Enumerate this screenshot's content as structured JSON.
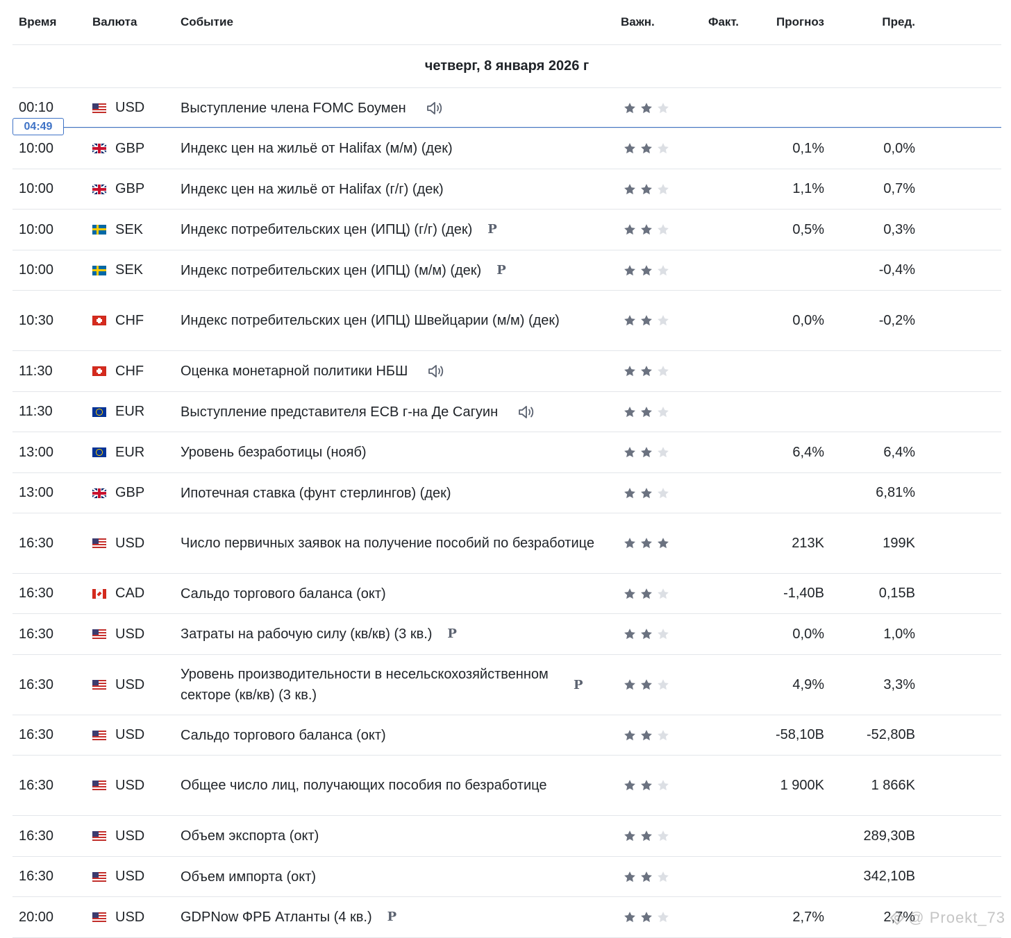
{
  "header": {
    "time": "Время",
    "currency": "Валюта",
    "event": "Событие",
    "importance": "Важн.",
    "actual": "Факт.",
    "forecast": "Прогноз",
    "previous": "Пред."
  },
  "day_label": "четверг, 8 января 2026 г",
  "current_time": "04:49",
  "colors": {
    "star_on": "#6b7280",
    "star_off": "#dcdfe4",
    "now_line": "#3f73c6"
  },
  "events": [
    {
      "time": "00:10",
      "flag": "us-flag-icon",
      "currency": "USD",
      "event": "Выступление члена FOMC Боумен",
      "marker": "speaker-icon",
      "importance": 2,
      "actual": "",
      "forecast": "",
      "previous": ""
    },
    {
      "time": "10:00",
      "flag": "gb-flag-icon",
      "currency": "GBP",
      "event": "Индекс цен на жильё от Halifax (м/м) (дек)",
      "marker": "",
      "importance": 2,
      "actual": "",
      "forecast": "0,1%",
      "previous": "0,0%"
    },
    {
      "time": "10:00",
      "flag": "gb-flag-icon",
      "currency": "GBP",
      "event": "Индекс цен на жильё от Halifax (г/г) (дек)",
      "marker": "",
      "importance": 2,
      "actual": "",
      "forecast": "1,1%",
      "previous": "0,7%"
    },
    {
      "time": "10:00",
      "flag": "se-flag-icon",
      "currency": "SEK",
      "event": "Индекс потребительских цен (ИПЦ) (г/г) (дек)",
      "marker": "P",
      "importance": 2,
      "actual": "",
      "forecast": "0,5%",
      "previous": "0,3%"
    },
    {
      "time": "10:00",
      "flag": "se-flag-icon",
      "currency": "SEK",
      "event": "Индекс потребительских цен (ИПЦ) (м/м) (дек)",
      "marker": "P",
      "importance": 2,
      "actual": "",
      "forecast": "",
      "previous": "-0,4%"
    },
    {
      "time": "10:30",
      "flag": "ch-flag-icon",
      "currency": "CHF",
      "event": "Индекс потребительских цен (ИПЦ) Швейцарии (м/м) (дек)",
      "marker": "",
      "importance": 2,
      "actual": "",
      "forecast": "0,0%",
      "previous": "-0,2%"
    },
    {
      "time": "11:30",
      "flag": "ch-flag-icon",
      "currency": "CHF",
      "event": "Оценка монетарной политики НБШ",
      "marker": "speaker-icon",
      "importance": 2,
      "actual": "",
      "forecast": "",
      "previous": ""
    },
    {
      "time": "11:30",
      "flag": "eu-flag-icon",
      "currency": "EUR",
      "event": "Выступление представителя ЕСВ г-на Де Сагуин",
      "marker": "speaker-icon",
      "importance": 2,
      "actual": "",
      "forecast": "",
      "previous": ""
    },
    {
      "time": "13:00",
      "flag": "eu-flag-icon",
      "currency": "EUR",
      "event": "Уровень безработицы  (нояб)",
      "marker": "",
      "importance": 2,
      "actual": "",
      "forecast": "6,4%",
      "previous": "6,4%"
    },
    {
      "time": "13:00",
      "flag": "gb-flag-icon",
      "currency": "GBP",
      "event": "Ипотечная ставка (фунт стерлингов)  (дек)",
      "marker": "",
      "importance": 2,
      "actual": "",
      "forecast": "",
      "previous": "6,81%"
    },
    {
      "time": "16:30",
      "flag": "us-flag-icon",
      "currency": "USD",
      "event": "Число первичных заявок на получение пособий по безработице",
      "marker": "",
      "importance": 3,
      "actual": "",
      "forecast": "213K",
      "previous": "199K"
    },
    {
      "time": "16:30",
      "flag": "ca-flag-icon",
      "currency": "CAD",
      "event": "Сальдо торгового баланса  (окт)",
      "marker": "",
      "importance": 2,
      "actual": "",
      "forecast": "-1,40B",
      "previous": "0,15B"
    },
    {
      "time": "16:30",
      "flag": "us-flag-icon",
      "currency": "USD",
      "event": "Затраты на рабочую силу (кв/кв) (3 кв.)",
      "marker": "P",
      "importance": 2,
      "actual": "",
      "forecast": "0,0%",
      "previous": "1,0%"
    },
    {
      "time": "16:30",
      "flag": "us-flag-icon",
      "currency": "USD",
      "event": "Уровень производительности в несельскохозяйственном секторе (кв/кв) (3 кв.)",
      "marker": "P-far",
      "importance": 2,
      "actual": "",
      "forecast": "4,9%",
      "previous": "3,3%"
    },
    {
      "time": "16:30",
      "flag": "us-flag-icon",
      "currency": "USD",
      "event": "Сальдо торгового баланса  (окт)",
      "marker": "",
      "importance": 2,
      "actual": "",
      "forecast": "-58,10B",
      "previous": "-52,80B"
    },
    {
      "time": "16:30",
      "flag": "us-flag-icon",
      "currency": "USD",
      "event": "Общее число лиц, получающих пособия по безработице",
      "marker": "",
      "importance": 2,
      "actual": "",
      "forecast": "1 900K",
      "previous": "1 866K"
    },
    {
      "time": "16:30",
      "flag": "us-flag-icon",
      "currency": "USD",
      "event": "Объем экспорта  (окт)",
      "marker": "",
      "importance": 2,
      "actual": "",
      "forecast": "",
      "previous": "289,30B"
    },
    {
      "time": "16:30",
      "flag": "us-flag-icon",
      "currency": "USD",
      "event": "Объем импорта  (окт)",
      "marker": "",
      "importance": 2,
      "actual": "",
      "forecast": "",
      "previous": "342,10B"
    },
    {
      "time": "20:00",
      "flag": "us-flag-icon",
      "currency": "USD",
      "event": "GDPNow ФРБ Атланты  (4 кв.)",
      "marker": "P",
      "importance": 2,
      "actual": "",
      "forecast": "2,7%",
      "previous": "2,7%"
    }
  ],
  "watermark": "@ Proekt_73"
}
